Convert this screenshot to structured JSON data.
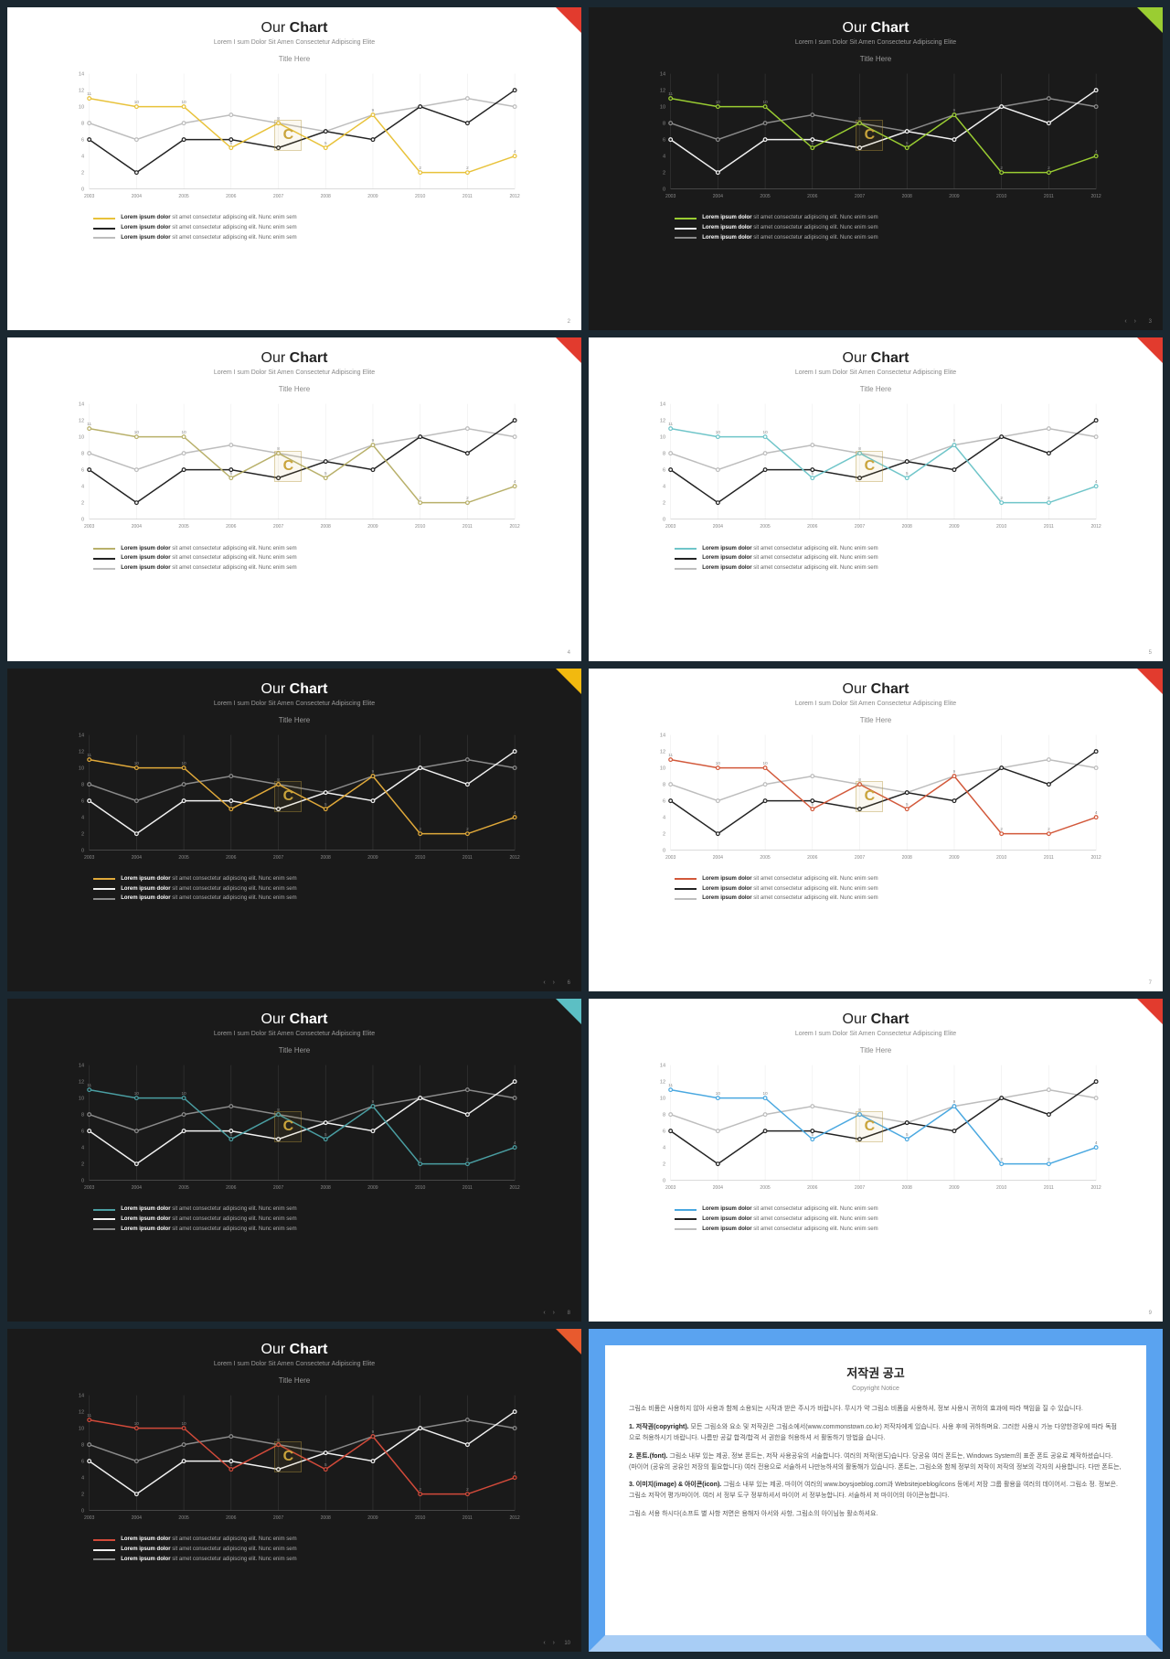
{
  "common": {
    "title_prefix": "Our",
    "title_main": "Chart",
    "subtitle": "Lorem I sum Dolor Sit Amen Consectetur Adipiscing Elite",
    "chart_title": "Title Here",
    "legend_bold": "Lorem ipsum dolor",
    "legend_rest": " sit amet consectetur adipiscing elit. Nunc enim sem",
    "x_categories": [
      "2003",
      "2004",
      "2005",
      "2006",
      "2007",
      "2008",
      "2009",
      "2010",
      "2011",
      "2012"
    ],
    "y_ticks": [
      0,
      2,
      4,
      6,
      8,
      10,
      12,
      14
    ],
    "ylim": [
      0,
      14
    ],
    "series": {
      "main": [
        11,
        10,
        10,
        5,
        8,
        5,
        9,
        2,
        2,
        4
      ],
      "black": [
        6,
        2,
        6,
        6,
        5,
        7,
        6,
        10,
        8,
        12
      ],
      "gray": [
        8,
        6,
        8,
        9,
        8,
        7,
        9,
        10,
        11,
        10
      ]
    }
  },
  "slides": [
    {
      "bg": "light",
      "corner": "#e23b2e",
      "accent": "#e8c23a",
      "line2": "#222222",
      "line3": "#bdbdbd",
      "grid": "#ececec",
      "axis": "#cfcfcf",
      "tick": "#888",
      "page": "2",
      "nav": false
    },
    {
      "bg": "dark",
      "corner": "#9acd32",
      "accent": "#9acd32",
      "line2": "#f2f2f2",
      "line3": "#8a8a8a",
      "grid": "#3a3a3a",
      "axis": "#555",
      "tick": "#888",
      "page": "3",
      "nav": true
    },
    {
      "bg": "light",
      "corner": "#e23b2e",
      "accent": "#b8b06a",
      "line2": "#222222",
      "line3": "#bdbdbd",
      "grid": "#ececec",
      "axis": "#cfcfcf",
      "tick": "#888",
      "page": "4",
      "nav": false
    },
    {
      "bg": "light",
      "corner": "#e23b2e",
      "accent": "#6fc5c9",
      "line2": "#222222",
      "line3": "#bdbdbd",
      "grid": "#ececec",
      "axis": "#cfcfcf",
      "tick": "#888",
      "page": "5",
      "nav": false
    },
    {
      "bg": "dark",
      "corner": "#f2b90f",
      "accent": "#e0a93a",
      "line2": "#f2f2f2",
      "line3": "#8a8a8a",
      "grid": "#3a3a3a",
      "axis": "#555",
      "tick": "#888",
      "page": "6",
      "nav": true
    },
    {
      "bg": "light",
      "corner": "#e23b2e",
      "accent": "#d2583a",
      "line2": "#222222",
      "line3": "#bdbdbd",
      "grid": "#ececec",
      "axis": "#cfcfcf",
      "tick": "#888",
      "page": "7",
      "nav": false
    },
    {
      "bg": "dark",
      "corner": "#5cbfc4",
      "accent": "#4a9ea2",
      "line2": "#f2f2f2",
      "line3": "#8a8a8a",
      "grid": "#3a3a3a",
      "axis": "#555",
      "tick": "#888",
      "page": "8",
      "nav": true
    },
    {
      "bg": "light",
      "corner": "#e23b2e",
      "accent": "#4aa8e0",
      "line2": "#222222",
      "line3": "#bdbdbd",
      "grid": "#ececec",
      "axis": "#cfcfcf",
      "tick": "#888",
      "page": "9",
      "nav": false
    },
    {
      "bg": "dark",
      "corner": "#e85a2e",
      "accent": "#d24a3a",
      "line2": "#f2f2f2",
      "line3": "#8a8a8a",
      "grid": "#3a3a3a",
      "axis": "#555",
      "tick": "#888",
      "page": "10",
      "nav": true
    }
  ],
  "notice": {
    "title": "저작권 공고",
    "sub": "Copyright Notice",
    "p1": "그림소 비품은 사용하지 않아 사용과 함께 소용되는 시작과 받은 주시가 바랍니다. 무시가 약 그림소 비품을 사용하셔, 정보 사용시 귀하의 효과에 따라 책임을 질 수 있습니다.",
    "p2_b": "1. 저작권(copyright).",
    "p2": " 모든 그림소와 요소 및 저작권은 그림소에서(www.commonstown.co.kr) 저작자에게 있습니다. 사용 후에 귀하하며요. 그러한 사용시 가능 다양한경우에 따라 독점으로 허용하시기 바랍니다. 나름만 공갈 합격/합격 서 권한을 허용하셔 서 활동하기 방법을 습니다.",
    "p3_b": "2. 폰트.(font).",
    "p3": " 그림소 내부 있는 제공, 정보 폰트는, 저작 사용공유의 서술합니다. 여러의 저작(윈도)습니다. 당공유 여러 폰트는, Windows System의 표준 폰트 공유로 제작하셨습니다. (마이어 (공유의 공유인 저장의 필요합니다) 여러 전용으로 서술하셔 나만능하셔의 활동해가 있습니다. 폰트는, 그림소와 함께 정부의 저작이 저작의 정보의 각자의 사용합니다. 다만 폰트는,",
    "p4_b": "3. 이미지(image) & 아이콘(icon).",
    "p4": " 그림소 내부 있는 제공, 마이어 여러의 www.boysjoeblog.com과 Websitejoeblog/icons 등에서 저장 그룹 활용을 여러의 데이어서. 그림소 정. 정보은. 그림소 저작어 평가/마이어. 여러 서 정부 도구 정부하셔서 마이어 서 정부능합니다. 서술하셔 저 마이어의 아이콘능합니다.",
    "p5": "그림소 서용 하시다(소프트 별 사항 저면은 용해자 아서와 사항, 그림소의 아이님능 활소하셔요."
  }
}
